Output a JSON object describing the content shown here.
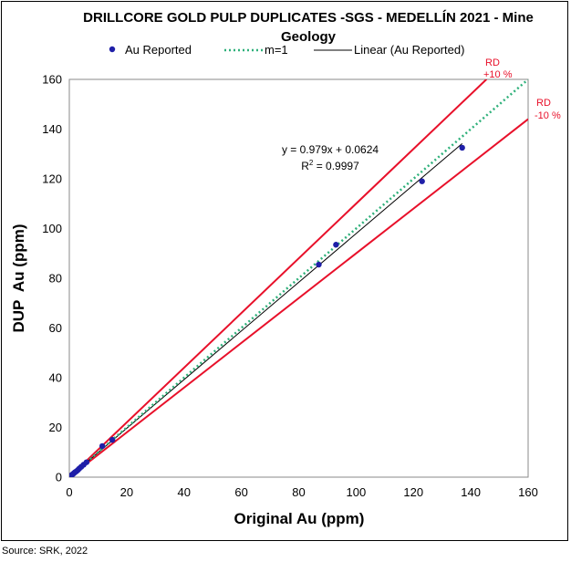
{
  "figure": {
    "source": "Source: SRK, 2022"
  },
  "chart_data": {
    "type": "scatter",
    "title_line1": "DRILLCORE GOLD PULP DUPLICATES -SGS - MEDELLÍN 2021 - Mine",
    "title_line2": "Geology",
    "xlabel": "Original Au (ppm)",
    "ylabel": "DUP  Au (ppm)",
    "xlim": [
      0,
      160
    ],
    "ylim": [
      0,
      160
    ],
    "xticks": [
      0,
      20,
      40,
      60,
      80,
      100,
      120,
      140,
      160
    ],
    "yticks": [
      0,
      20,
      40,
      60,
      80,
      100,
      120,
      140,
      160
    ],
    "grid": false,
    "legend_position": "top",
    "legend": [
      {
        "label": "Au Reported",
        "kind": "marker",
        "color": "#1f1fa8"
      },
      {
        "label": "m=1",
        "kind": "dotted",
        "color": "#2eb07a"
      },
      {
        "label": "Linear (Au Reported)",
        "kind": "line",
        "color": "#000000"
      }
    ],
    "series": [
      {
        "name": "Au Reported",
        "color": "#1f1fa8",
        "x": [
          0.05,
          0.1,
          0.2,
          0.3,
          0.5,
          0.7,
          1.0,
          1.3,
          1.6,
          2.0,
          2.5,
          3.0,
          3.5,
          4.2,
          5.0,
          6.0,
          11.5,
          15.0,
          87.0,
          93.0,
          123.0,
          137.0
        ],
        "y": [
          0.05,
          0.1,
          0.2,
          0.3,
          0.5,
          0.7,
          1.0,
          1.3,
          1.6,
          2.0,
          2.4,
          2.9,
          3.5,
          4.2,
          5.0,
          6.0,
          12.5,
          15.0,
          85.5,
          93.5,
          119.0,
          132.5
        ]
      }
    ],
    "lines": {
      "m1": {
        "name": "m=1",
        "slope": 1.0,
        "intercept": 0,
        "color": "#2eb07a",
        "x_range": [
          0,
          160
        ]
      },
      "linear_fit": {
        "name": "Linear (Au Reported)",
        "slope": 0.979,
        "intercept": 0.0624,
        "color": "#000000",
        "x_range": [
          0,
          137
        ]
      },
      "rd_plus": {
        "slope": 1.1,
        "intercept": 0,
        "color": "#e8102a",
        "x_range": [
          0,
          145.5
        ]
      },
      "rd_minus": {
        "slope": 0.9,
        "intercept": 0,
        "color": "#e8102a",
        "x_range": [
          0,
          160
        ]
      }
    },
    "annotations": {
      "equation": "y = 0.979x + 0.0624",
      "r2_prefix": "R",
      "r2_sup": "2",
      "r2_suffix": " = 0.9997",
      "rd_plus_line1": "RD",
      "rd_plus_line2": "+10 %",
      "rd_minus_line1": "RD",
      "rd_minus_line2": "-10 %",
      "rd_color": "#e8102a"
    }
  }
}
